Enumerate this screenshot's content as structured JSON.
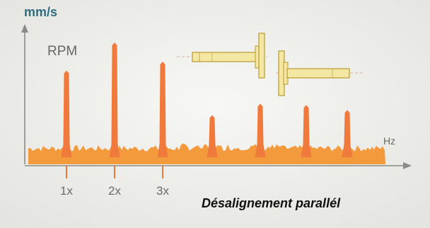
{
  "chart_data": {
    "type": "bar",
    "ylabel": "mm/s",
    "xlabel": "Hz",
    "legend_text": "RPM",
    "caption": "Désalignement parallél",
    "tick_labels": [
      "1x",
      "2x",
      "3x"
    ],
    "values": [
      0.68,
      0.9,
      0.75,
      0.33,
      0.42,
      0.41,
      0.37
    ],
    "colors": {
      "peaks": "#f07a3c",
      "noise": "#f39a3c",
      "axis": "#8a8a8a",
      "unit_label": "#2f6e80",
      "shaft": "#f3e7a3",
      "shaft_stroke": "#b89a30"
    }
  }
}
